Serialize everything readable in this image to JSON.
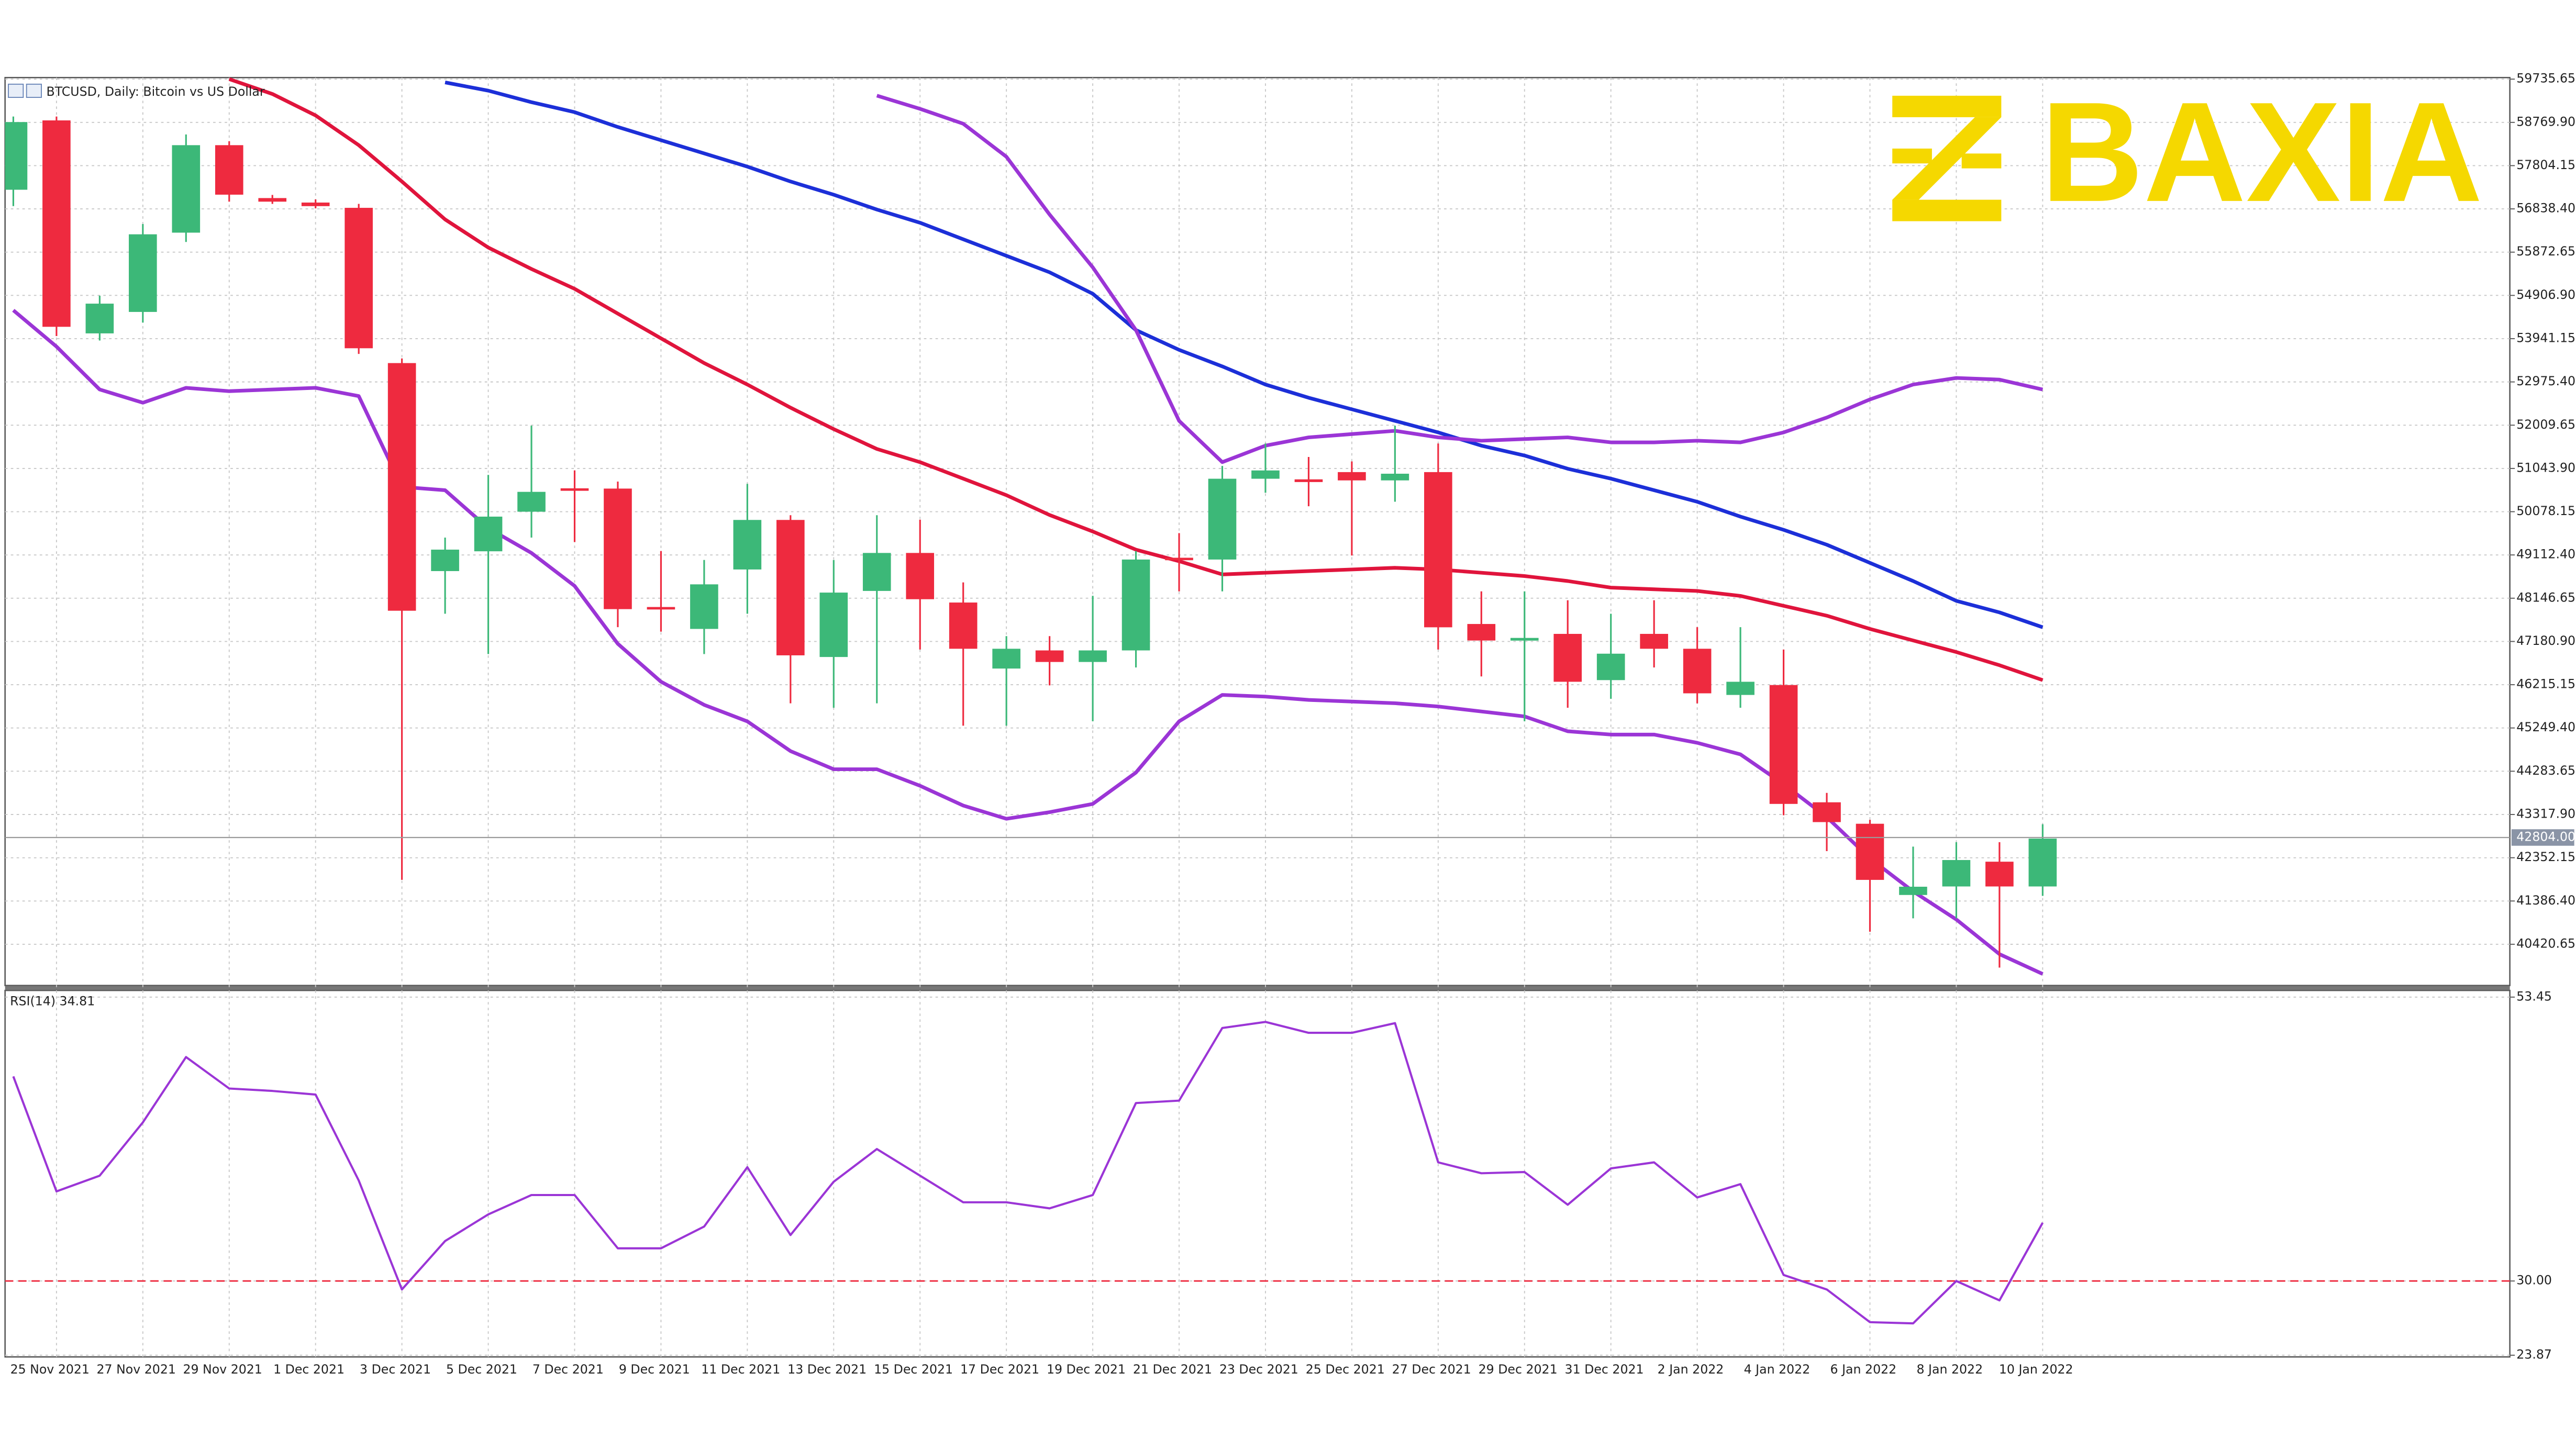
{
  "logo": "BAXIA",
  "chart_data": [
    {
      "type": "candlestick",
      "title": "BTCUSD, Daily: Bitcoin vs US Dollar",
      "categories": [
        null,
        "25 Nov 2021",
        null,
        "27 Nov 2021",
        null,
        "29 Nov 2021",
        null,
        "1 Dec 2021",
        null,
        "3 Dec 2021",
        null,
        "5 Dec 2021",
        null,
        "7 Dec 2021",
        null,
        "9 Dec 2021",
        null,
        "11 Dec 2021",
        null,
        "13 Dec 2021",
        null,
        "15 Dec 2021",
        null,
        "17 Dec 2021",
        null,
        "19 Dec 2021",
        null,
        "21 Dec 2021",
        null,
        "23 Dec 2021",
        null,
        "25 Dec 2021",
        null,
        "27 Dec 2021",
        null,
        "29 Dec 2021",
        null,
        "31 Dec 2021",
        null,
        "2 Jan 2022",
        null,
        "4 Jan 2022",
        null,
        "6 Jan 2022",
        null,
        "8 Jan 2022",
        null,
        "10 Jan 2022"
      ],
      "open": [
        57266,
        58814,
        54059,
        54538,
        56308,
        58261,
        57080,
        56980,
        56862,
        53396,
        48752,
        49194,
        50078,
        50600,
        50594,
        47950,
        47461,
        48788,
        49894,
        46834,
        48309,
        49157,
        48050,
        46576,
        46981,
        46723,
        46981,
        49050,
        49010,
        50814,
        50800,
        50962,
        50777,
        50962,
        47571,
        47200,
        47350,
        46318,
        47350,
        47018,
        45987,
        46208,
        43590,
        43111,
        41521,
        41711,
        42264,
        41711
      ],
      "high": [
        58900,
        58900,
        54900,
        56500,
        58500,
        58350,
        57150,
        57050,
        56950,
        53500,
        49500,
        50900,
        52000,
        51000,
        50750,
        49200,
        49000,
        50700,
        50000,
        49000,
        50000,
        49900,
        48500,
        47300,
        47300,
        48200,
        49200,
        49600,
        51100,
        51600,
        51300,
        51200,
        52000,
        51600,
        48300,
        48300,
        48100,
        47800,
        48100,
        47500,
        47500,
        47000,
        43800,
        43200,
        42600,
        42700,
        42700,
        43100
      ],
      "low": [
        56900,
        54000,
        53900,
        54300,
        56100,
        57000,
        56950,
        56850,
        53600,
        41858,
        47800,
        46900,
        49500,
        49400,
        47500,
        47400,
        46900,
        47800,
        45800,
        45700,
        45800,
        47000,
        45300,
        45300,
        46200,
        45400,
        46600,
        48300,
        48300,
        50500,
        50200,
        49100,
        50300,
        47000,
        46400,
        45400,
        45700,
        45900,
        46600,
        45800,
        45700,
        43300,
        42500,
        40700,
        41000,
        41000,
        39900,
        41500
      ],
      "close": [
        58777,
        54206,
        54723,
        56271,
        58261,
        57156,
        57000,
        56900,
        53727,
        47867,
        49231,
        49968,
        50521,
        50560,
        47903,
        47900,
        48456,
        49894,
        46871,
        48272,
        49157,
        48124,
        47018,
        47018,
        46723,
        46981,
        49010,
        49010,
        50814,
        50999,
        50740,
        50777,
        50926,
        47497,
        47202,
        47260,
        46281,
        46908,
        47018,
        46023,
        46281,
        43554,
        43148,
        41858,
        41705,
        42301,
        41711,
        42780
      ],
      "up_color": "#3cb878",
      "down_color": "#ee2a3f",
      "series": [
        {
          "color": "#e0143c",
          "values": [
            null,
            null,
            null,
            null,
            null,
            59736,
            59404,
            58925,
            58261,
            57450,
            56603,
            55976,
            55497,
            55054,
            54501,
            53949,
            53396,
            52917,
            52401,
            51922,
            51479,
            51184,
            50816,
            50447,
            50004,
            49636,
            49230,
            48973,
            48678,
            48715,
            48752,
            48788,
            48825,
            48788,
            48715,
            48641,
            48530,
            48383,
            48346,
            48309,
            48198,
            47977,
            47756,
            47461,
            47203,
            46945,
            46650,
            46318
          ]
        },
        {
          "color": "#1c2fd8",
          "values": [
            null,
            null,
            null,
            null,
            null,
            null,
            null,
            null,
            null,
            null,
            59662,
            59478,
            59220,
            58998,
            58667,
            58372,
            58077,
            57782,
            57450,
            57155,
            56824,
            56529,
            56160,
            55792,
            55423,
            54944,
            54133,
            53691,
            53322,
            52917,
            52622,
            52364,
            52106,
            51848,
            51553,
            51332,
            51037,
            50816,
            50558,
            50300,
            49968,
            49673,
            49341,
            48936,
            48530,
            48088,
            47830,
            47498
          ]
        },
        {
          "color": "#9b35d6",
          "values": [
            null,
            null,
            null,
            null,
            null,
            null,
            null,
            null,
            null,
            null,
            null,
            null,
            null,
            null,
            null,
            null,
            null,
            null,
            null,
            null,
            59367,
            59072,
            58740,
            58003,
            56713,
            55534,
            54133,
            52106,
            51184,
            51553,
            51737,
            51811,
            51884,
            51737,
            51663,
            51700,
            51737,
            51626,
            51626,
            51663,
            51626,
            51848,
            52180,
            52585,
            52917,
            53064,
            53027,
            52806
          ]
        },
        {
          "color": "#9b35d6",
          "values": [
            54575,
            53764,
            52806,
            52511,
            52843,
            52769,
            52806,
            52843,
            52659,
            50631,
            50558,
            49710,
            49157,
            48420,
            47129,
            46282,
            45765,
            45397,
            44733,
            44328,
            44328,
            43959,
            43517,
            43222,
            43370,
            43554,
            44254,
            45397,
            45987,
            45950,
            45876,
            45839,
            45802,
            45729,
            45618,
            45507,
            45176,
            45102,
            45102,
            44918,
            44660,
            43996,
            43259,
            42338,
            41600,
            40974,
            40200,
            39758
          ]
        }
      ],
      "current_price": {
        "value": 42804,
        "label": "42804.00"
      },
      "ylim": [
        39500,
        59770
      ],
      "yticks": [
        59735.65,
        {
          "value": 58769.9,
          "label": "58769.90"
        },
        57804.15,
        {
          "value": 56838.4,
          "label": "56838.40"
        },
        55872.65,
        {
          "value": 54906.9,
          "label": "54906.90"
        },
        53941.15,
        {
          "value": 52975.4,
          "label": "52975.40"
        },
        52009.65,
        {
          "value": 51043.9,
          "label": "51043.90"
        },
        50078.15,
        {
          "value": 49112.4,
          "label": "49112.40"
        },
        48146.65,
        {
          "value": 47180.9,
          "label": "47180.90"
        },
        46215.15,
        {
          "value": 45249.4,
          "label": "45249.40"
        },
        44283.65,
        {
          "value": 43317.9,
          "label": "43317.90"
        },
        42352.15,
        {
          "value": 41386.4,
          "label": "41386.40"
        },
        40420.65
      ],
      "grid": true
    },
    {
      "type": "line",
      "title": "RSI(14) 34.81",
      "series": [
        {
          "color": "#9b35d6",
          "values": [
            46.9,
            37.4,
            38.7,
            43.1,
            48.5,
            45.9,
            45.7,
            45.4,
            38.3,
            29.3,
            33.3,
            35.5,
            37.1,
            37.1,
            32.7,
            32.7,
            34.5,
            39.4,
            33.8,
            38.2,
            40.9,
            38.7,
            36.5,
            36.5,
            36.0,
            37.1,
            44.7,
            44.9,
            50.9,
            51.4,
            50.5,
            50.5,
            51.3,
            39.8,
            38.9,
            39.0,
            36.3,
            39.3,
            39.8,
            36.9,
            38.0,
            30.5,
            29.3,
            26.6,
            26.5,
            30.0,
            28.4,
            34.81
          ]
        }
      ],
      "reference_line": {
        "value": 30,
        "color": "#ee2a3f"
      },
      "ylim": [
        23.73,
        54.0
      ],
      "yticks": [
        53.45,
        {
          "value": 30,
          "label": "30.00"
        },
        23.87
      ],
      "grid": true
    }
  ]
}
